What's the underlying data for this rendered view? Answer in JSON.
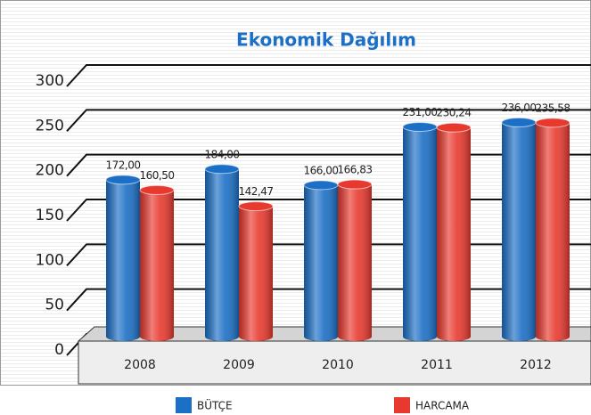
{
  "chart_data": {
    "type": "bar",
    "title": "Ekonomik Dağılım",
    "categories": [
      "2008",
      "2009",
      "2010",
      "2011",
      "2012"
    ],
    "series": [
      {
        "name": "BÜTÇE",
        "color": "#1b6fc6",
        "values": [
          172,
          184,
          166,
          231,
          236
        ],
        "value_labels": [
          "172,00",
          "184,00",
          "166,00",
          "231,00",
          "236,00"
        ]
      },
      {
        "name": "HARCAMA",
        "color": "#e8392e",
        "values": [
          160.5,
          142.47,
          166.83,
          230.24,
          235.58
        ],
        "value_labels": [
          "160,50",
          "142,47",
          "166,83",
          "230,24",
          "235,58"
        ]
      }
    ],
    "ylim": [
      0,
      300
    ],
    "yticks": [
      0,
      50,
      100,
      150,
      200,
      250,
      300
    ],
    "grid": true
  }
}
